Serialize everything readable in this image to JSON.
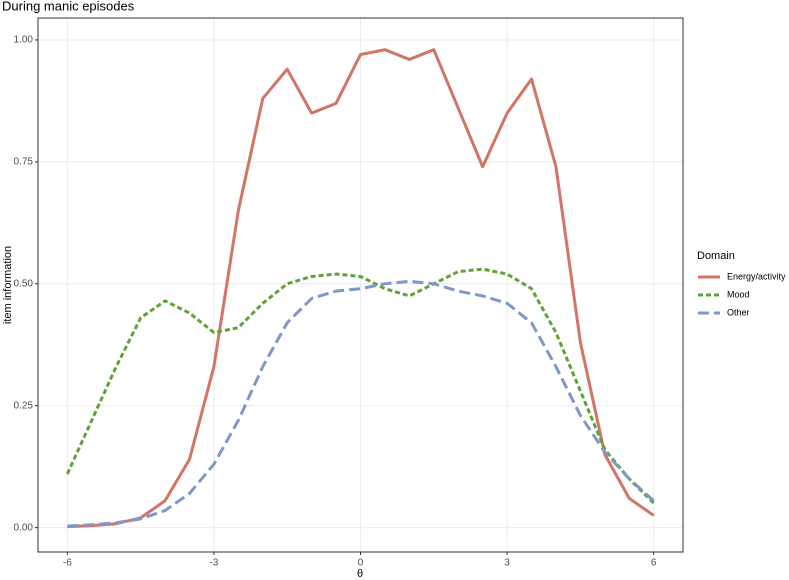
{
  "chart_data": {
    "type": "line",
    "title": "During manic episodes",
    "x_label": "θ",
    "y_label": "item information",
    "legend_title": "Domain",
    "legend_position": "right",
    "grid": true,
    "x": [
      -6,
      -5.5,
      -5,
      -4.5,
      -4,
      -3.5,
      -3,
      -2.5,
      -2,
      -1.5,
      -1,
      -0.5,
      0,
      0.5,
      1,
      1.5,
      2,
      2.5,
      3,
      3.5,
      4,
      4.5,
      5,
      5.5,
      6
    ],
    "xlim": [
      -6.6,
      6.6
    ],
    "xticks": [
      -6,
      -3,
      0,
      3,
      6
    ],
    "ylim": [
      -0.05,
      1.045
    ],
    "yticks": [
      {
        "value": 0,
        "label": "0.00"
      },
      {
        "value": 0.25,
        "label": "0.25"
      },
      {
        "value": 0.5,
        "label": "0.50"
      },
      {
        "value": 0.75,
        "label": "0.75"
      },
      {
        "value": 1,
        "label": "1.00"
      }
    ],
    "series": [
      {
        "name": "Energy/activity",
        "color": "#d27466",
        "dash": "solid",
        "values": [
          0.002,
          0.004,
          0.008,
          0.02,
          0.055,
          0.14,
          0.33,
          0.65,
          0.88,
          0.94,
          0.85,
          0.87,
          0.97,
          0.98,
          0.96,
          0.98,
          0.86,
          0.74,
          0.85,
          0.92,
          0.74,
          0.38,
          0.15,
          0.06,
          0.025
        ]
      },
      {
        "name": "Mood",
        "color": "#5fa337",
        "dash": "dotted",
        "values": [
          0.11,
          0.22,
          0.33,
          0.43,
          0.465,
          0.44,
          0.4,
          0.41,
          0.46,
          0.5,
          0.515,
          0.52,
          0.515,
          0.49,
          0.475,
          0.5,
          0.525,
          0.53,
          0.52,
          0.49,
          0.4,
          0.28,
          0.16,
          0.1,
          0.05
        ]
      },
      {
        "name": "Other",
        "color": "#8097c9",
        "dash": "dashed",
        "values": [
          0.003,
          0.006,
          0.01,
          0.018,
          0.035,
          0.07,
          0.13,
          0.22,
          0.33,
          0.42,
          0.47,
          0.485,
          0.49,
          0.5,
          0.505,
          0.5,
          0.485,
          0.475,
          0.46,
          0.42,
          0.33,
          0.23,
          0.155,
          0.1,
          0.055
        ]
      }
    ]
  }
}
